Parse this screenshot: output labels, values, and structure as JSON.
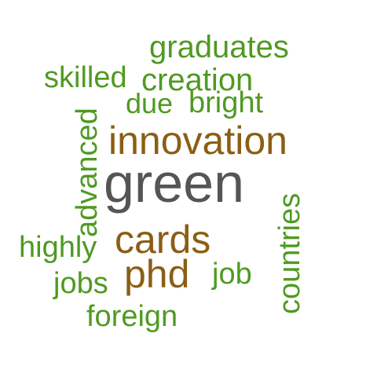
{
  "words": {
    "green": {
      "text": "green",
      "color": "#555555"
    },
    "innovation": {
      "text": "innovation",
      "color": "#8b5e14"
    },
    "cards": {
      "text": "cards",
      "color": "#8b5e14"
    },
    "phd": {
      "text": "phd",
      "color": "#8b5e14"
    },
    "graduates": {
      "text": "graduates",
      "color": "#4f9a22"
    },
    "creation": {
      "text": "creation",
      "color": "#4f9a22"
    },
    "skilled": {
      "text": "skilled",
      "color": "#4f9a22"
    },
    "due": {
      "text": "due",
      "color": "#4f9a22"
    },
    "bright": {
      "text": "bright",
      "color": "#4f9a22"
    },
    "advanced": {
      "text": "advanced",
      "color": "#4f9a22"
    },
    "highly": {
      "text": "highly",
      "color": "#4f9a22"
    },
    "jobs": {
      "text": "jobs",
      "color": "#4f9a22"
    },
    "job": {
      "text": "job",
      "color": "#4f9a22"
    },
    "foreign": {
      "text": "foreign",
      "color": "#4f9a22"
    },
    "countries": {
      "text": "countries",
      "color": "#4f9a22"
    }
  }
}
